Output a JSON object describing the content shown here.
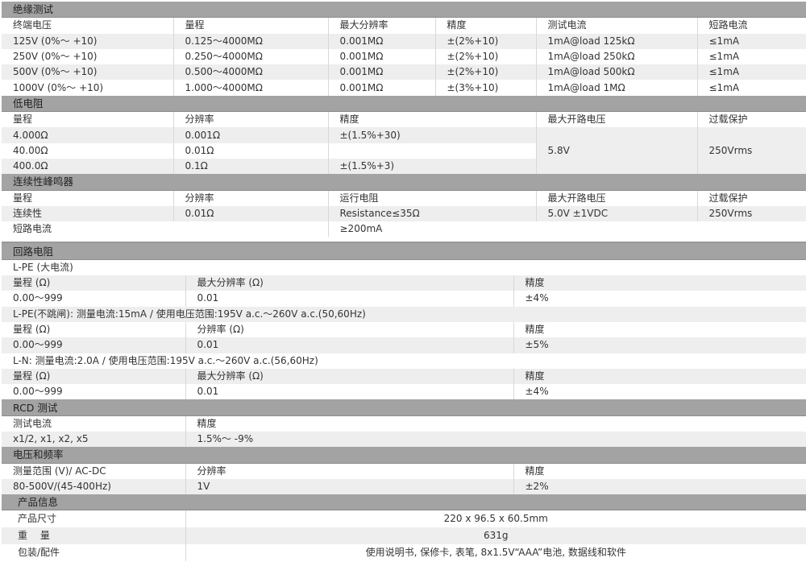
{
  "insulation": {
    "title": "绝缘测试",
    "headers": [
      "终端电压",
      "量程",
      "最大分辨率",
      "精度",
      "测试电流",
      "短路电流"
    ],
    "rows": [
      [
        "125V (0%～ +10)",
        "0.125～4000MΩ",
        "0.001MΩ",
        "±(2%+10)",
        "1mA@load 125kΩ",
        "≤1mA"
      ],
      [
        "250V (0%～ +10)",
        "0.250～4000MΩ",
        "0.001MΩ",
        "±(2%+10)",
        "1mA@load 250kΩ",
        "≤1mA"
      ],
      [
        "500V (0%～ +10)",
        "0.500～4000MΩ",
        "0.001MΩ",
        "±(2%+10)",
        "1mA@load 500kΩ",
        "≤1mA"
      ],
      [
        "1000V (0%～ +10)",
        "1.000～4000MΩ",
        "0.001MΩ",
        "±(3%+10)",
        "1mA@load 1MΩ",
        "≤1mA"
      ]
    ]
  },
  "low_resistance": {
    "title": "低电阻",
    "headers": [
      "量程",
      "分辨率",
      "精度",
      "最大开路电压",
      "过载保护"
    ],
    "rows": [
      [
        "4.000Ω",
        "0.001Ω",
        "±(1.5%+30)"
      ],
      [
        "40.00Ω",
        "0.01Ω",
        ""
      ],
      [
        "400.0Ω",
        "0.1Ω",
        "±(1.5%+3)"
      ]
    ],
    "open_voltage": "5.8V",
    "overload": "250Vrms"
  },
  "continuity": {
    "title": "连续性峰鸣器",
    "headers": [
      "量程",
      "分辨率",
      "运行电阻",
      "最大开路电压",
      "过载保护"
    ],
    "row": [
      "连续性",
      "0.01Ω",
      "Resistance≤35Ω",
      "5.0V ±1VDC",
      "250Vrms"
    ],
    "short_label": "短路电流",
    "short_value": "≥200mA"
  },
  "loop": {
    "title": "回路电阻",
    "groups": [
      {
        "label": "L-PE (大电流)",
        "headers": [
          "量程 (Ω)",
          "最大分辨率 (Ω)",
          "精度"
        ],
        "row": [
          "0.00～999",
          "0.01",
          "±4%"
        ]
      },
      {
        "label": "L-PE(不跳闸): 测量电流:15mA / 使用电压范围:195V a.c.～260V a.c.(50,60Hz)",
        "headers": [
          "量程 (Ω)",
          "分辨率 (Ω)",
          "精度"
        ],
        "row": [
          "0.00～999",
          "0.01",
          "±5%"
        ]
      },
      {
        "label": "L-N: 测量电流:2.0A / 使用电压范围:195V a.c.～260V a.c.(56,60Hz)",
        "headers": [
          "量程 (Ω)",
          "最大分辨率 (Ω)",
          "精度"
        ],
        "row": [
          "0.00～999",
          "0.01",
          "±4%"
        ]
      }
    ]
  },
  "rcd": {
    "title": "RCD 测试",
    "headers": [
      "测试电流",
      "精度"
    ],
    "row": [
      "x1/2,  x1, x2, x5",
      "1.5%～ -9%"
    ]
  },
  "voltage_freq": {
    "title": "电压和频率",
    "headers": [
      "测量范围 (V)/ AC-DC",
      "分辨率",
      "精度"
    ],
    "row": [
      "80-500V/(45-400Hz)",
      "1V",
      "±2%"
    ]
  },
  "product": {
    "title": "产品信息",
    "rows": [
      [
        "产品尺寸",
        "220 x 96.5 x 60.5mm"
      ],
      [
        "重　 量",
        "631g"
      ],
      [
        "包装/配件",
        "使用说明书, 保修卡, 表笔, 8x1.5V“AAA”电池, 数据线和软件"
      ]
    ]
  }
}
